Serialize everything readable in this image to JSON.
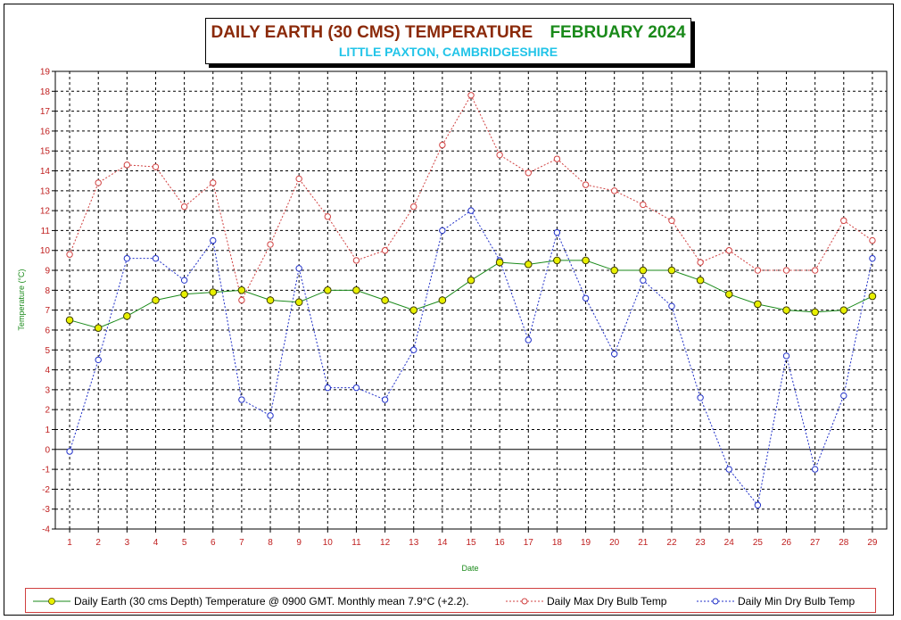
{
  "title": {
    "main": "DAILY EARTH (30 CMS) TEMPERATURE",
    "month": "FEBRUARY 2024",
    "subtitle": "LITTLE PAXTON, CAMBRIDGESHIRE"
  },
  "colors": {
    "title_main": "#8B2A0A",
    "title_month": "#1A8A1A",
    "subtitle": "#22C4E8",
    "earth_line": "#1A8A1A",
    "earth_marker": "#E8F000",
    "max_line": "#D04040",
    "min_line": "#2030C8",
    "tick_labels": "#C02020",
    "axis_labels": "#1A8A1A"
  },
  "chart_data": {
    "type": "line",
    "title": "DAILY EARTH (30 CMS) TEMPERATURE FEBRUARY 2024",
    "subtitle": "LITTLE PAXTON, CAMBRIDGESHIRE",
    "xlabel": "Date",
    "ylabel": "Temperature (°C)",
    "ylim": [
      -4,
      19
    ],
    "grid": true,
    "legend_position": "bottom",
    "x": [
      1,
      2,
      3,
      4,
      5,
      6,
      7,
      8,
      9,
      10,
      11,
      12,
      13,
      14,
      15,
      16,
      17,
      18,
      19,
      20,
      21,
      22,
      23,
      24,
      25,
      26,
      27,
      28,
      29
    ],
    "y_ticks": [
      -4,
      -3,
      -2,
      -1,
      0,
      1,
      2,
      3,
      4,
      5,
      6,
      7,
      8,
      9,
      10,
      11,
      12,
      13,
      14,
      15,
      16,
      17,
      18,
      19
    ],
    "series": [
      {
        "name": "Daily Earth (30 cms Depth) Temperature @ 0900 GMT. Monthly mean 7.9°C (+2.2).",
        "style": "solid",
        "values": [
          6.5,
          6.1,
          6.7,
          7.5,
          7.8,
          7.9,
          8.0,
          7.5,
          7.4,
          8.0,
          8.0,
          7.5,
          7.0,
          7.5,
          8.5,
          9.4,
          9.3,
          9.5,
          9.5,
          9.0,
          9.0,
          9.0,
          8.5,
          7.8,
          7.3,
          7.0,
          6.9,
          7.0,
          7.7
        ]
      },
      {
        "name": "Daily Max Dry Bulb Temp",
        "style": "dotted",
        "values": [
          9.8,
          13.4,
          14.3,
          14.2,
          12.2,
          13.4,
          7.5,
          10.3,
          13.6,
          11.7,
          9.5,
          10.0,
          12.2,
          15.3,
          17.8,
          14.8,
          13.9,
          14.6,
          13.3,
          13.0,
          12.3,
          11.5,
          9.4,
          10.0,
          9.0,
          9.0,
          9.0,
          11.5,
          10.5
        ]
      },
      {
        "name": "Daily Min Dry Bulb Temp",
        "style": "dotted",
        "values": [
          -0.1,
          4.5,
          9.6,
          9.6,
          8.5,
          10.5,
          2.5,
          1.7,
          9.1,
          3.1,
          3.1,
          2.5,
          5.0,
          11.0,
          12.0,
          9.5,
          5.5,
          10.9,
          7.6,
          4.8,
          8.5,
          7.2,
          2.6,
          -1.0,
          -2.8,
          4.7,
          -1.0,
          2.7,
          9.6
        ]
      }
    ]
  }
}
